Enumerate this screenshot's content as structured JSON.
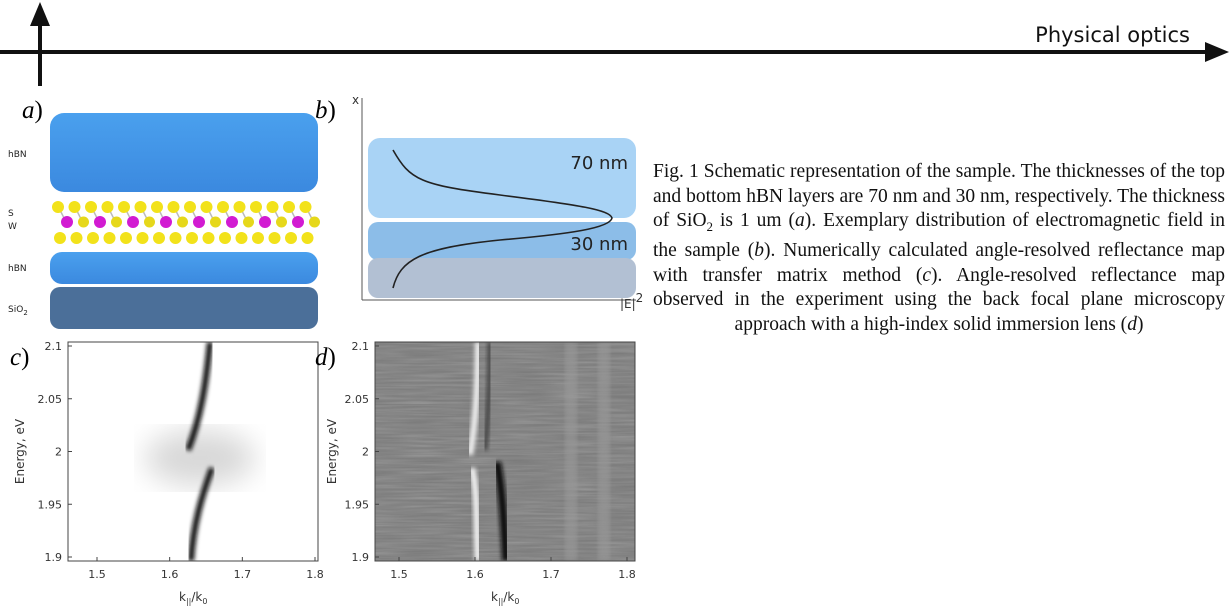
{
  "header": {
    "section": "Physical optics"
  },
  "panel_a": {
    "label": {
      "letter": "a",
      "paren": ")"
    },
    "layers": [
      {
        "label": "hBN"
      },
      {
        "label_top": "S",
        "label_bottom": "W"
      },
      {
        "label": "hBN"
      },
      {
        "label": "SiO",
        "sub": "2"
      }
    ]
  },
  "panel_b": {
    "label": {
      "letter": "b",
      "paren": ")"
    },
    "axis_y": "x",
    "axis_x": {
      "text": "|E|",
      "sup": "2"
    },
    "regions": [
      "70 nm",
      "30 nm"
    ]
  },
  "panel_c": {
    "label": {
      "letter": "c",
      "paren": ")"
    },
    "ylabel": "Energy, eV",
    "xlabel": {
      "k": "k",
      "sub1": "||",
      "mid": "/k",
      "sub2": "0"
    },
    "yticks": [
      "2.1",
      "2.05",
      "2",
      "1.95",
      "1.9"
    ],
    "xticks": [
      "1.5",
      "1.6",
      "1.7",
      "1.8"
    ]
  },
  "panel_d": {
    "label": {
      "letter": "d",
      "paren": ")"
    },
    "ylabel": "Energy, eV",
    "xlabel": {
      "k": "k",
      "sub1": "||",
      "mid": "/k",
      "sub2": "0"
    },
    "yticks": [
      "2.1",
      "2.05",
      "2",
      "1.95",
      "1.9"
    ],
    "xticks": [
      "1.5",
      "1.6",
      "1.7",
      "1.8"
    ]
  },
  "caption": [
    "Fig. 1 Schematic representation of the sample. The thicknesses of the top and bottom hBN layers are 70 nm and 30 nm, respectively. The thickness of SiO",
    "2",
    " is 1 um (",
    "a",
    "). Exemplary distribution of electromagnetic field in the sample (",
    "b",
    "). Numerically calculated angle-resolved reflectance map with transfer matrix method (",
    "c",
    "). Angle-resolved reflectance map observed in the experiment using the back focal plane microscopy approach with a high-index solid immersion lens (",
    "d",
    ")"
  ]
}
